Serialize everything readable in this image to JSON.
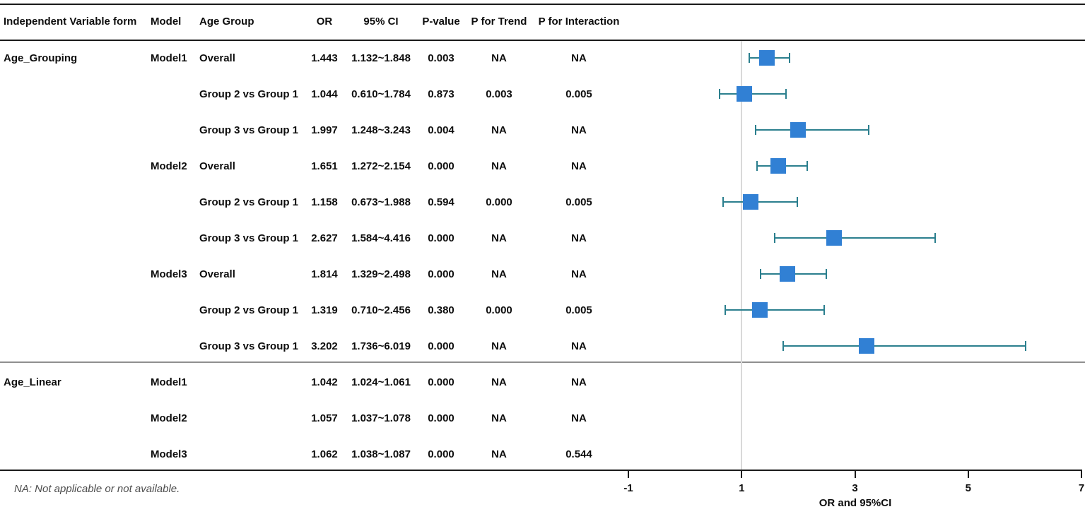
{
  "table": {
    "columns": [
      {
        "key": "variable",
        "label": "Independent Variable form"
      },
      {
        "key": "model",
        "label": "Model"
      },
      {
        "key": "age_group",
        "label": "Age Group"
      },
      {
        "key": "or",
        "label": "OR"
      },
      {
        "key": "ci",
        "label": "95% CI"
      },
      {
        "key": "p_value",
        "label": "P-value"
      },
      {
        "key": "p_trend",
        "label": "P for Trend"
      },
      {
        "key": "p_interaction",
        "label": "P for Interaction"
      }
    ],
    "rows": [
      {
        "variable": "Age_Grouping",
        "model": "Model1",
        "age_group": "Overall",
        "or": "1.443",
        "ci": "1.132~1.848",
        "p_value": "0.003",
        "p_trend": "NA",
        "p_interaction": "NA"
      },
      {
        "variable": "",
        "model": "",
        "age_group": "Group 2 vs Group 1",
        "or": "1.044",
        "ci": "0.610~1.784",
        "p_value": "0.873",
        "p_trend": "0.003",
        "p_interaction": "0.005"
      },
      {
        "variable": "",
        "model": "",
        "age_group": "Group 3 vs Group 1",
        "or": "1.997",
        "ci": "1.248~3.243",
        "p_value": "0.004",
        "p_trend": "NA",
        "p_interaction": "NA"
      },
      {
        "variable": "",
        "model": "Model2",
        "age_group": "Overall",
        "or": "1.651",
        "ci": "1.272~2.154",
        "p_value": "0.000",
        "p_trend": "NA",
        "p_interaction": "NA"
      },
      {
        "variable": "",
        "model": "",
        "age_group": "Group 2 vs Group 1",
        "or": "1.158",
        "ci": "0.673~1.988",
        "p_value": "0.594",
        "p_trend": "0.000",
        "p_interaction": "0.005"
      },
      {
        "variable": "",
        "model": "",
        "age_group": "Group 3 vs Group 1",
        "or": "2.627",
        "ci": "1.584~4.416",
        "p_value": "0.000",
        "p_trend": "NA",
        "p_interaction": "NA"
      },
      {
        "variable": "",
        "model": "Model3",
        "age_group": "Overall",
        "or": "1.814",
        "ci": "1.329~2.498",
        "p_value": "0.000",
        "p_trend": "NA",
        "p_interaction": "NA"
      },
      {
        "variable": "",
        "model": "",
        "age_group": "Group 2 vs Group 1",
        "or": "1.319",
        "ci": "0.710~2.456",
        "p_value": "0.380",
        "p_trend": "0.000",
        "p_interaction": "0.005"
      },
      {
        "variable": "",
        "model": "",
        "age_group": "Group 3 vs Group 1",
        "or": "3.202",
        "ci": "1.736~6.019",
        "p_value": "0.000",
        "p_trend": "NA",
        "p_interaction": "NA"
      },
      {
        "variable": "Age_Linear",
        "model": "Model1",
        "age_group": "",
        "or": "1.042",
        "ci": "1.024~1.061",
        "p_value": "0.000",
        "p_trend": "NA",
        "p_interaction": "NA"
      },
      {
        "variable": "",
        "model": "Model2",
        "age_group": "",
        "or": "1.057",
        "ci": "1.037~1.078",
        "p_value": "0.000",
        "p_trend": "NA",
        "p_interaction": "NA"
      },
      {
        "variable": "",
        "model": "Model3",
        "age_group": "",
        "or": "1.062",
        "ci": "1.038~1.087",
        "p_value": "0.000",
        "p_trend": "NA",
        "p_interaction": "0.544"
      }
    ],
    "section_break_after_row": 8
  },
  "chart_data": {
    "type": "scatter",
    "subtype": "forest-plot",
    "xlabel": "OR and 95%CI",
    "x_ticks": [
      -1,
      1,
      3,
      5,
      7
    ],
    "tick_labels": [
      "-1",
      "1",
      "3",
      "5",
      "7"
    ],
    "xlim": [
      -1,
      7
    ],
    "reference_line_x": 1,
    "grid": false,
    "legend": "none",
    "marker_color": "#3180d4",
    "whisker_color": "#2b7f8e",
    "reference_line_color": "#d9d9d9",
    "points": [
      {
        "label": "Age_Grouping Model1 Overall",
        "or": 1.443,
        "ci_low": 1.132,
        "ci_high": 1.848,
        "plotted": true
      },
      {
        "label": "Age_Grouping Model1 Group 2 vs Group 1",
        "or": 1.044,
        "ci_low": 0.61,
        "ci_high": 1.784,
        "plotted": true
      },
      {
        "label": "Age_Grouping Model1 Group 3 vs Group 1",
        "or": 1.997,
        "ci_low": 1.248,
        "ci_high": 3.243,
        "plotted": true
      },
      {
        "label": "Age_Grouping Model2 Overall",
        "or": 1.651,
        "ci_low": 1.272,
        "ci_high": 2.154,
        "plotted": true
      },
      {
        "label": "Age_Grouping Model2 Group 2 vs Group 1",
        "or": 1.158,
        "ci_low": 0.673,
        "ci_high": 1.988,
        "plotted": true
      },
      {
        "label": "Age_Grouping Model2 Group 3 vs Group 1",
        "or": 2.627,
        "ci_low": 1.584,
        "ci_high": 4.416,
        "plotted": true
      },
      {
        "label": "Age_Grouping Model3 Overall",
        "or": 1.814,
        "ci_low": 1.329,
        "ci_high": 2.498,
        "plotted": true
      },
      {
        "label": "Age_Grouping Model3 Group 2 vs Group 1",
        "or": 1.319,
        "ci_low": 0.71,
        "ci_high": 2.456,
        "plotted": true
      },
      {
        "label": "Age_Grouping Model3 Group 3 vs Group 1",
        "or": 3.202,
        "ci_low": 1.736,
        "ci_high": 6.019,
        "plotted": true
      },
      {
        "label": "Age_Linear Model1",
        "or": 1.042,
        "ci_low": 1.024,
        "ci_high": 1.061,
        "plotted": false
      },
      {
        "label": "Age_Linear Model2",
        "or": 1.057,
        "ci_low": 1.037,
        "ci_high": 1.078,
        "plotted": false
      },
      {
        "label": "Age_Linear Model3",
        "or": 1.062,
        "ci_low": 1.038,
        "ci_high": 1.087,
        "plotted": false
      }
    ]
  },
  "footer": {
    "note": "NA: Not applicable or not available."
  }
}
